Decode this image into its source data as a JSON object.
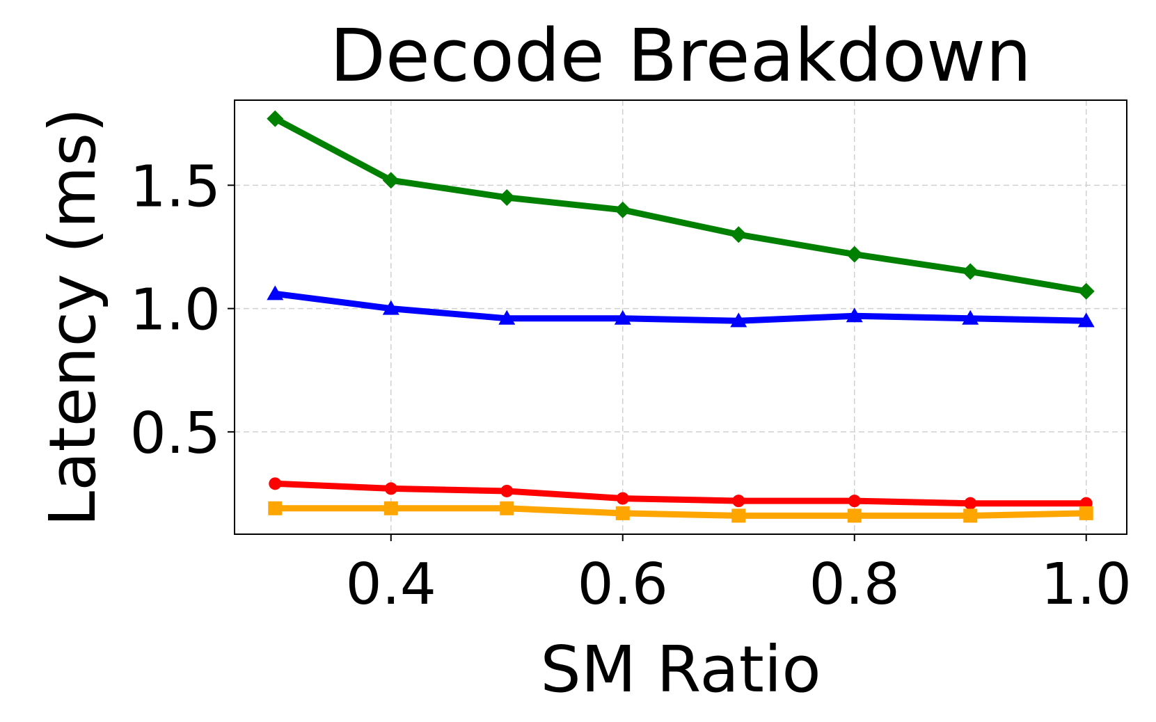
{
  "chart_data": {
    "type": "line",
    "title": "Decode Breakdown",
    "xlabel": "SM Ratio",
    "ylabel": "Latency (ms)",
    "x": [
      0.3,
      0.4,
      0.5,
      0.6,
      0.7,
      0.8,
      0.9,
      1.0
    ],
    "xlim": [
      0.265,
      1.035
    ],
    "ylim": [
      0.085,
      1.845
    ],
    "xticks": [
      0.4,
      0.6,
      0.8,
      1.0
    ],
    "xtick_labels": [
      "0.4",
      "0.6",
      "0.8",
      "1.0"
    ],
    "yticks": [
      0.5,
      1.0,
      1.5
    ],
    "ytick_labels": [
      "0.5",
      "1.0",
      "1.5"
    ],
    "grid": true,
    "legend": false,
    "series": [
      {
        "color": "#008000",
        "marker": "diamond",
        "values": [
          1.77,
          1.52,
          1.45,
          1.4,
          1.3,
          1.22,
          1.15,
          1.07
        ]
      },
      {
        "color": "#0000ff",
        "marker": "triangle",
        "values": [
          1.06,
          1.0,
          0.96,
          0.96,
          0.95,
          0.97,
          0.96,
          0.95
        ]
      },
      {
        "color": "#ff0000",
        "marker": "circle",
        "values": [
          0.29,
          0.27,
          0.26,
          0.23,
          0.22,
          0.22,
          0.21,
          0.21
        ]
      },
      {
        "color": "#ffa500",
        "marker": "square",
        "values": [
          0.19,
          0.19,
          0.19,
          0.17,
          0.16,
          0.16,
          0.16,
          0.17
        ]
      }
    ]
  }
}
